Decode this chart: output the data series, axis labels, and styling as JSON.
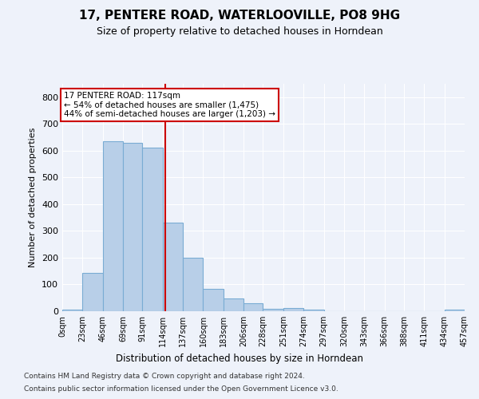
{
  "title": "17, PENTERE ROAD, WATERLOOVILLE, PO8 9HG",
  "subtitle": "Size of property relative to detached houses in Horndean",
  "xlabel_bottom": "Distribution of detached houses by size in Horndean",
  "ylabel": "Number of detached properties",
  "footer_line1": "Contains HM Land Registry data © Crown copyright and database right 2024.",
  "footer_line2": "Contains public sector information licensed under the Open Government Licence v3.0.",
  "bin_edges": [
    0,
    23,
    46,
    69,
    91,
    114,
    137,
    160,
    183,
    206,
    228,
    251,
    274,
    297,
    320,
    343,
    366,
    388,
    411,
    434,
    457
  ],
  "bar_heights": [
    5,
    142,
    635,
    630,
    610,
    330,
    200,
    85,
    48,
    30,
    10,
    12,
    6,
    0,
    0,
    0,
    0,
    0,
    0,
    5
  ],
  "bar_color": "#b8cfe8",
  "bar_edge_color": "#7aacd4",
  "property_size": 117,
  "annotation_text": "17 PENTERE ROAD: 117sqm\n← 54% of detached houses are smaller (1,475)\n44% of semi-detached houses are larger (1,203) →",
  "vline_color": "#cc0000",
  "annotation_box_color": "#ffffff",
  "annotation_box_edge_color": "#cc0000",
  "ylim": [
    0,
    850
  ],
  "yticks": [
    0,
    100,
    200,
    300,
    400,
    500,
    600,
    700,
    800
  ],
  "background_color": "#eef2fa",
  "axes_bg_color": "#eef2fa"
}
